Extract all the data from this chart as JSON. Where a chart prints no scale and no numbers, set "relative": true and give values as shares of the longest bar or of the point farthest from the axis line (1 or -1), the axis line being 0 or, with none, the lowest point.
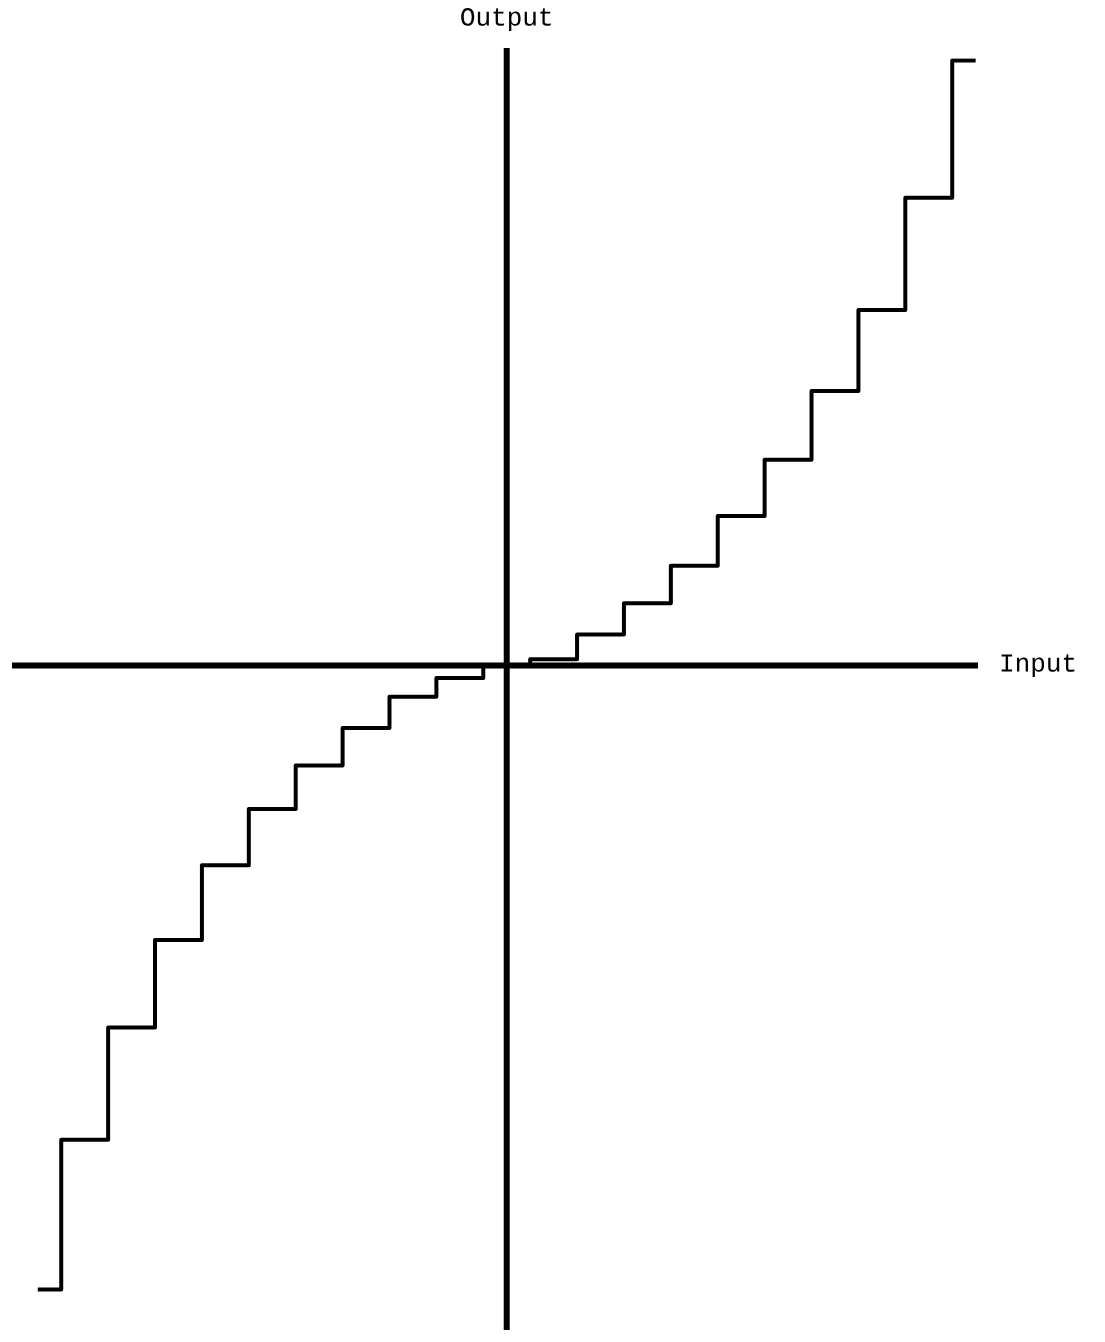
{
  "chart_data": {
    "type": "step",
    "xlabel": "Input",
    "ylabel": "Output",
    "relative": true,
    "color": "#000000",
    "categories": [
      null,
      null,
      null,
      null,
      null,
      null,
      null,
      null,
      null,
      null,
      null,
      null,
      null,
      null,
      null,
      null,
      null,
      null,
      null,
      null,
      null
    ],
    "values": [
      -1,
      -0.76,
      -0.58,
      -0.44,
      -0.32,
      -0.23,
      -0.16,
      -0.1,
      -0.05,
      -0.02,
      0,
      0.01,
      0.05,
      0.1,
      0.16,
      0.24,
      0.33,
      0.44,
      0.57,
      0.75,
      0.97
    ]
  }
}
